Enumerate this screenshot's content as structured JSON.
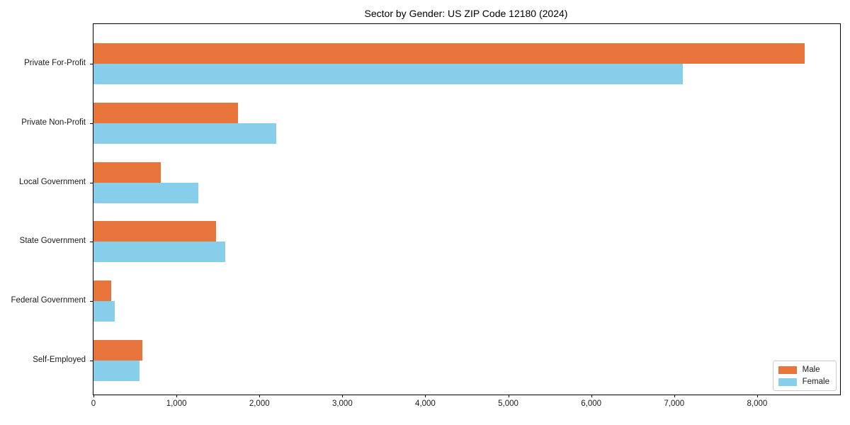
{
  "chart_data": {
    "type": "bar",
    "orientation": "horizontal",
    "title": "Sector by Gender: US ZIP Code 12180 (2024)",
    "categories": [
      "Private For-Profit",
      "Private Non-Profit",
      "Local Government",
      "State Government",
      "Federal Government",
      "Self-Employed"
    ],
    "series": [
      {
        "name": "Male",
        "color": "#e8763c",
        "values": [
          8570,
          1740,
          810,
          1480,
          215,
          590
        ]
      },
      {
        "name": "Female",
        "color": "#87ceeb",
        "values": [
          7100,
          2200,
          1260,
          1590,
          255,
          555
        ]
      }
    ],
    "xlabel": "",
    "ylabel": "",
    "xlim": [
      0,
      9000
    ],
    "xticks": [
      0,
      1000,
      2000,
      3000,
      4000,
      5000,
      6000,
      7000,
      8000
    ],
    "xtick_labels": [
      "0",
      "1,000",
      "2,000",
      "3,000",
      "4,000",
      "5,000",
      "6,000",
      "7,000",
      "8,000"
    ],
    "grid": false,
    "legend": {
      "position": "lower right"
    }
  }
}
